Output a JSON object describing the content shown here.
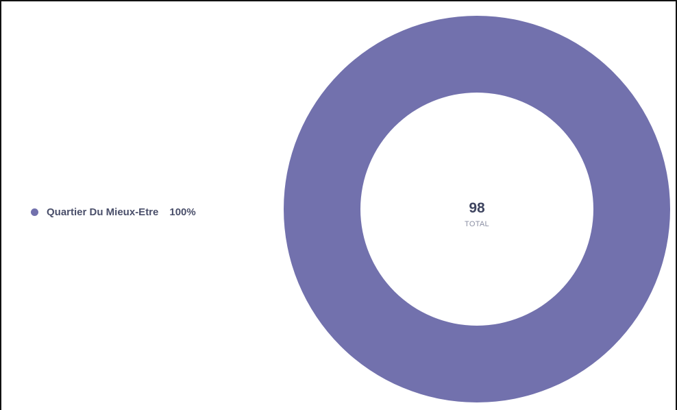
{
  "chart_data": {
    "type": "pie",
    "donut": true,
    "categories": [
      "Quartier Du Mieux-Etre"
    ],
    "values": [
      98
    ],
    "percent_labels": [
      "100%"
    ],
    "center_value": "98",
    "center_label": "TOTAL",
    "legend_position": "left",
    "colors": [
      "#7271ad"
    ]
  },
  "legend": {
    "items": [
      {
        "label": "Quartier Du Mieux-Etre",
        "percent": "100%",
        "color": "#7271ad"
      }
    ]
  }
}
